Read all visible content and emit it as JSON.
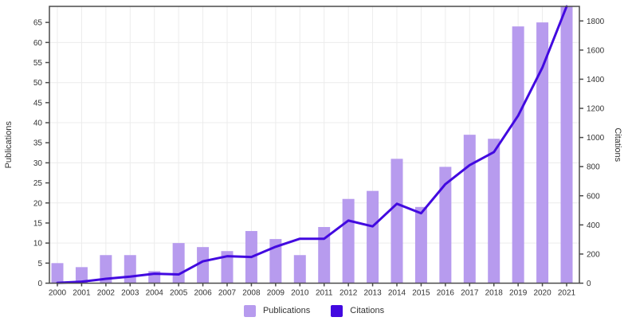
{
  "chart_data": {
    "type": "combo",
    "title": "",
    "categories": [
      "2000",
      "2001",
      "2002",
      "2003",
      "2004",
      "2005",
      "2006",
      "2007",
      "2008",
      "2009",
      "2010",
      "2011",
      "2012",
      "2013",
      "2014",
      "2015",
      "2016",
      "2017",
      "2018",
      "2019",
      "2020",
      "2021"
    ],
    "series": [
      {
        "name": "Publications",
        "type": "bar",
        "axis": "left",
        "values": [
          5,
          4,
          7,
          7,
          3,
          10,
          9,
          8,
          13,
          11,
          7,
          14,
          21,
          23,
          31,
          19,
          29,
          37,
          36,
          64,
          65,
          69
        ]
      },
      {
        "name": "Citations",
        "type": "line",
        "axis": "right",
        "values": [
          2,
          10,
          30,
          45,
          65,
          60,
          150,
          185,
          180,
          250,
          305,
          305,
          430,
          390,
          545,
          480,
          680,
          810,
          900,
          1150,
          1480,
          1900
        ]
      }
    ],
    "left_axis": {
      "label": "Publications",
      "min": 0,
      "max": 69,
      "tick_step": 5,
      "last_tick": 65,
      "grid_step": 10
    },
    "right_axis": {
      "label": "Citations",
      "min": 0,
      "max": 1900,
      "tick_step": 200,
      "last_tick": 1800
    },
    "legend_position": "bottom",
    "grid": true
  },
  "legend": {
    "publications_label": "Publications",
    "citations_label": "Citations"
  },
  "colors": {
    "bar": "#b79bee",
    "line": "#4209e0",
    "grid": "#ececec",
    "axis": "#4a4a4a",
    "text": "#333333",
    "background": "#ffffff"
  }
}
